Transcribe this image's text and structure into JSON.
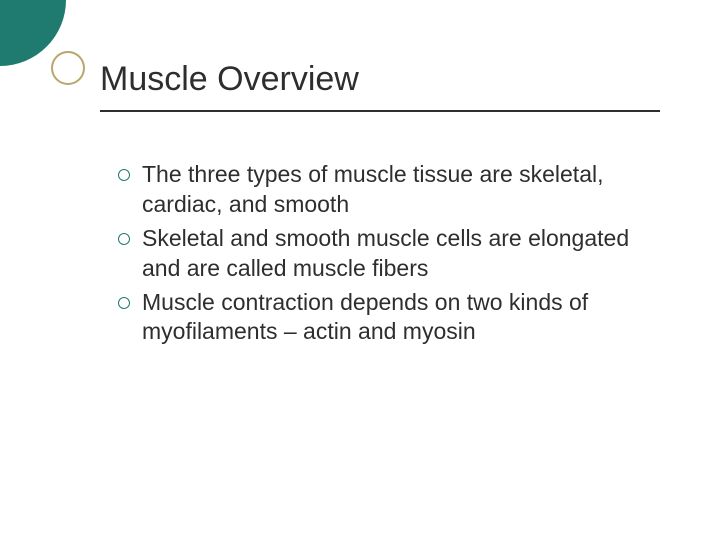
{
  "slide": {
    "title": "Muscle Overview",
    "title_font_family": "Arial",
    "title_fontsize": 34,
    "title_color": "#2e2e2e",
    "underline_color": "#2e2e2e",
    "body_font_family": "Verdana",
    "body_fontsize": 23,
    "body_color": "#2e2e2e",
    "bullet_ring_color": "#1f7a6f",
    "background_color": "#ffffff",
    "decor": {
      "big_circle_color": "#1f7a6f",
      "big_circle_diameter": 132,
      "small_ring_color": "#b9a66a",
      "small_ring_diameter": 34,
      "small_ring_border": 2
    },
    "bullets": [
      "The three types of muscle tissue are skeletal, cardiac, and smooth",
      "Skeletal and smooth muscle cells are elongated and are called muscle fibers",
      "Muscle contraction depends on two kinds of myofilaments – actin and myosin"
    ]
  }
}
